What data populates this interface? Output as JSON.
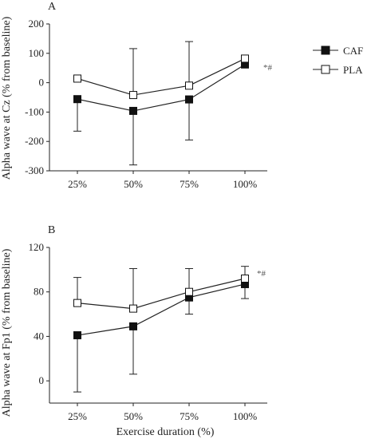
{
  "chart_data": [
    {
      "panel": "A",
      "type": "line",
      "categories": [
        "25%",
        "50%",
        "75%",
        "100%"
      ],
      "ylabel": "Alpha wave at Cz (% from baseline)",
      "ylim": [
        -300,
        200
      ],
      "yticks": [
        "200",
        "100",
        "0",
        "-100",
        "-200",
        "-300"
      ],
      "series": [
        {
          "name": "CAF",
          "values": [
            -56,
            -96,
            -57,
            62
          ],
          "err_low": [
            -165,
            -280,
            -195,
            56
          ],
          "err_high": [
            -56,
            -96,
            -57,
            68
          ],
          "marker": "filled-square"
        },
        {
          "name": "PLA",
          "values": [
            14,
            -42,
            -10,
            82
          ],
          "err_low": [
            14,
            -42,
            -10,
            82
          ],
          "err_high": [
            14,
            116,
            140,
            92
          ],
          "marker": "open-square"
        }
      ],
      "annotation": "*#",
      "grid": false,
      "legend": "right"
    },
    {
      "panel": "B",
      "type": "line",
      "categories": [
        "25%",
        "50%",
        "75%",
        "100%"
      ],
      "xlabel": "Exercise duration (%)",
      "ylabel": "Alpha wave at Fp1 (% from baseline)",
      "ylim": [
        -20,
        120
      ],
      "yticks": [
        "120",
        "80",
        "40",
        "0"
      ],
      "series": [
        {
          "name": "CAF",
          "values": [
            41,
            49,
            75,
            87
          ],
          "err_low": [
            -10,
            6,
            60,
            74
          ],
          "err_high": [
            41,
            49,
            75,
            87
          ],
          "marker": "filled-square"
        },
        {
          "name": "PLA",
          "values": [
            70,
            65,
            80,
            92
          ],
          "err_low": [
            70,
            65,
            80,
            92
          ],
          "err_high": [
            93,
            101,
            101,
            103
          ],
          "marker": "open-square"
        }
      ],
      "annotation": "*#",
      "grid": false
    }
  ],
  "legend": {
    "caf_label": "CAF",
    "pla_label": "PLA"
  }
}
